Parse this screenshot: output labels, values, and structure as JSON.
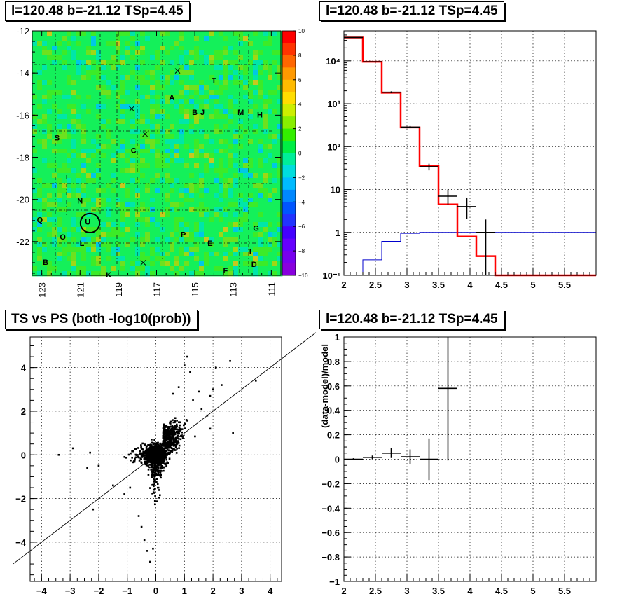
{
  "chart_data": [
    {
      "id": "skymap",
      "type": "heatmap",
      "title": "l=120.48 b=-21.12 TSp=4.45",
      "xlabel": "",
      "ylabel": "",
      "xlim": [
        123.5,
        110.5
      ],
      "ylim": [
        -23.6,
        -12
      ],
      "x_ticks": [
        "123",
        "121",
        "119",
        "117",
        "115",
        "113",
        "111"
      ],
      "x_tick_values": [
        123,
        121,
        119,
        117,
        115,
        113,
        111
      ],
      "y_ticks": [
        "-12",
        "-14",
        "-16",
        "-18",
        "-20",
        "-22"
      ],
      "y_tick_values": [
        -12,
        -14,
        -16,
        -18,
        -20,
        -22
      ],
      "colorbar": {
        "range": [
          -10,
          10
        ],
        "ticks": [
          "10",
          "8",
          "6",
          "4",
          "2",
          "0",
          "−2",
          "−4",
          "−6",
          "−8",
          "−10"
        ],
        "tick_values": [
          10,
          8,
          6,
          4,
          2,
          0,
          -2,
          -4,
          -6,
          -8,
          -10
        ]
      },
      "grid": true,
      "source_labels": [
        {
          "text": "T",
          "l": 114.0,
          "b": -14.4
        },
        {
          "text": "A",
          "l": 116.2,
          "b": -15.2
        },
        {
          "text": "B",
          "l": 115.0,
          "b": -15.9
        },
        {
          "text": "J",
          "l": 114.6,
          "b": -15.9
        },
        {
          "text": "M",
          "l": 112.6,
          "b": -15.9
        },
        {
          "text": "H",
          "l": 111.6,
          "b": -16.0
        },
        {
          "text": "S",
          "l": 122.2,
          "b": -17.1
        },
        {
          "text": "C",
          "l": 118.2,
          "b": -17.7
        },
        {
          "text": "N",
          "l": 121.0,
          "b": -20.1
        },
        {
          "text": "Q",
          "l": 123.1,
          "b": -21.0
        },
        {
          "text": "U",
          "l": 120.6,
          "b": -21.1
        },
        {
          "text": "G",
          "l": 111.8,
          "b": -21.4
        },
        {
          "text": "P",
          "l": 115.6,
          "b": -21.7
        },
        {
          "text": "O",
          "l": 121.9,
          "b": -21.8
        },
        {
          "text": "L",
          "l": 120.9,
          "b": -22.1
        },
        {
          "text": "E",
          "l": 114.2,
          "b": -22.1
        },
        {
          "text": "I",
          "l": 112.1,
          "b": -22.5
        },
        {
          "text": "B",
          "l": 122.8,
          "b": -23.0
        },
        {
          "text": "D",
          "l": 111.9,
          "b": -23.1
        },
        {
          "text": "F",
          "l": 113.4,
          "b": -23.4
        },
        {
          "text": "K",
          "l": 119.5,
          "b": -23.6
        }
      ],
      "crosses": [
        {
          "l": 115.9,
          "b": -13.9
        },
        {
          "l": 118.3,
          "b": -15.7
        },
        {
          "l": 117.6,
          "b": -16.9
        },
        {
          "l": 117.7,
          "b": -23.0
        }
      ],
      "circle": {
        "l": 120.48,
        "b": -21.12,
        "r_deg": 0.5
      }
    },
    {
      "id": "spectrum",
      "type": "line",
      "title": "l=120.48 b=-21.12 TSp=4.45",
      "xlabel": "",
      "ylabel": "",
      "xlim": [
        2,
        6
      ],
      "ylim": [
        0.1,
        50000
      ],
      "yscale": "log",
      "x_ticks": [
        "2",
        "2.5",
        "3",
        "3.5",
        "4",
        "4.5",
        "5",
        "5.5"
      ],
      "x_tick_values": [
        2,
        2.5,
        3,
        3.5,
        4,
        4.5,
        5,
        5.5
      ],
      "y_ticks": [
        "10⁴",
        "10³",
        "10²",
        "10",
        "1",
        "10⁻¹"
      ],
      "y_tick_values": [
        10000,
        1000,
        100,
        10,
        1,
        0.1
      ],
      "grid": true,
      "bin_edges": [
        2.0,
        2.3,
        2.6,
        2.9,
        3.2,
        3.5,
        3.8,
        4.1,
        4.4,
        4.7,
        5.0,
        5.3,
        5.6,
        5.9,
        6.0
      ],
      "model_red": [
        35000,
        9500,
        1800,
        280,
        35,
        4.5,
        0.8,
        0.28,
        0.1,
        0.1,
        0.1,
        0.1,
        0.1,
        0.1
      ],
      "model_blue": [
        0.1,
        0.23,
        0.62,
        0.95,
        1.0,
        1.0,
        1.0,
        1.0,
        1.0,
        1.0,
        1.0,
        1.0,
        1.0,
        1.0
      ],
      "data_points": [
        {
          "x": 2.15,
          "y": 35000,
          "xerr": 0.15,
          "ylo": 34600,
          "yhi": 35400
        },
        {
          "x": 2.45,
          "y": 9500,
          "xerr": 0.15,
          "ylo": 9300,
          "yhi": 9700
        },
        {
          "x": 2.75,
          "y": 1850,
          "xerr": 0.15,
          "ylo": 1760,
          "yhi": 1940
        },
        {
          "x": 3.05,
          "y": 285,
          "xerr": 0.15,
          "ylo": 268,
          "yhi": 302
        },
        {
          "x": 3.35,
          "y": 34,
          "xerr": 0.15,
          "ylo": 28,
          "yhi": 40
        },
        {
          "x": 3.65,
          "y": 7,
          "xerr": 0.15,
          "ylo": 4.5,
          "yhi": 10
        },
        {
          "x": 3.95,
          "y": 4,
          "xerr": 0.15,
          "ylo": 2.1,
          "yhi": 6.5
        },
        {
          "x": 4.25,
          "y": 1,
          "xerr": 0.15,
          "ylo": 0.1,
          "yhi": 2
        }
      ]
    },
    {
      "id": "ts_vs_ps",
      "type": "scatter",
      "title": "TS vs PS (both -log10(prob))",
      "xlabel": "",
      "ylabel": "",
      "xlim": [
        -4.4,
        4.4
      ],
      "ylim": [
        -5.8,
        5.4
      ],
      "x_ticks": [
        "−4",
        "−3",
        "−2",
        "−1",
        "0",
        "1",
        "2",
        "3",
        "4"
      ],
      "x_tick_values": [
        -4,
        -3,
        -2,
        -1,
        0,
        1,
        2,
        3,
        4
      ],
      "y_ticks": [
        "4",
        "2",
        "0",
        "−2",
        "−4"
      ],
      "y_tick_values": [
        4,
        2,
        0,
        -2,
        -4
      ],
      "grid": true,
      "reference_line": {
        "slope": 1,
        "intercept": 0
      },
      "outliers": [
        [
          -3.4,
          0.0
        ],
        [
          -2.9,
          0.3
        ],
        [
          -2.4,
          -0.6
        ],
        [
          -2.2,
          -2.5
        ],
        [
          -2.0,
          -0.5
        ],
        [
          -2.3,
          0.1
        ],
        [
          -1.5,
          -1.4
        ],
        [
          -1.1,
          -1.8
        ],
        [
          -0.9,
          -1.5
        ],
        [
          -0.5,
          -3.3
        ],
        [
          -0.3,
          -4.4
        ],
        [
          -0.2,
          -4.9
        ],
        [
          -0.4,
          -3.9
        ],
        [
          -0.1,
          -4.3
        ],
        [
          -0.6,
          -2.8
        ],
        [
          1.0,
          4.1
        ],
        [
          1.2,
          3.8
        ],
        [
          1.1,
          4.5
        ],
        [
          2.6,
          4.3
        ],
        [
          2.1,
          4.0
        ],
        [
          3.5,
          3.4
        ],
        [
          2.7,
          1.0
        ],
        [
          1.9,
          1.2
        ],
        [
          2.3,
          3.2
        ],
        [
          1.9,
          2.7
        ],
        [
          1.5,
          2.9
        ],
        [
          0.8,
          3.1
        ],
        [
          1.6,
          2.1
        ],
        [
          2.0,
          3.0
        ],
        [
          1.3,
          2.5
        ],
        [
          0.6,
          2.8
        ],
        [
          1.8,
          1.8
        ]
      ]
    },
    {
      "id": "residuals",
      "type": "scatter",
      "title": "l=120.48 b=-21.12 TSp=4.45",
      "xlabel": "",
      "ylabel": "(data-model)/model",
      "xlim": [
        2,
        6
      ],
      "ylim": [
        -1,
        1
      ],
      "x_ticks": [
        "2",
        "2.5",
        "3",
        "3.5",
        "4",
        "4.5",
        "5",
        "5.5"
      ],
      "x_tick_values": [
        2,
        2.5,
        3,
        3.5,
        4,
        4.5,
        5,
        5.5
      ],
      "y_ticks": [
        "1",
        "0.8",
        "0.6",
        "0.4",
        "0.2",
        "0",
        "−0.2",
        "−0.4",
        "−0.6",
        "−0.8",
        "−1"
      ],
      "y_tick_values": [
        1,
        0.8,
        0.6,
        0.4,
        0.2,
        0,
        -0.2,
        -0.4,
        -0.6,
        -0.8,
        -1
      ],
      "grid": true,
      "data_points": [
        {
          "x": 2.15,
          "y": 0.0,
          "xerr": 0.15,
          "ylo": -0.008,
          "yhi": 0.008
        },
        {
          "x": 2.45,
          "y": 0.015,
          "xerr": 0.15,
          "ylo": 0.0,
          "yhi": 0.03
        },
        {
          "x": 2.75,
          "y": 0.05,
          "xerr": 0.15,
          "ylo": 0.01,
          "yhi": 0.09
        },
        {
          "x": 3.05,
          "y": 0.02,
          "xerr": 0.15,
          "ylo": -0.04,
          "yhi": 0.08
        },
        {
          "x": 3.35,
          "y": 0.0,
          "xerr": 0.15,
          "ylo": -0.17,
          "yhi": 0.17
        },
        {
          "x": 3.65,
          "y": 0.58,
          "xerr": 0.15,
          "ylo": -0.01,
          "yhi": 1.0
        }
      ]
    }
  ]
}
